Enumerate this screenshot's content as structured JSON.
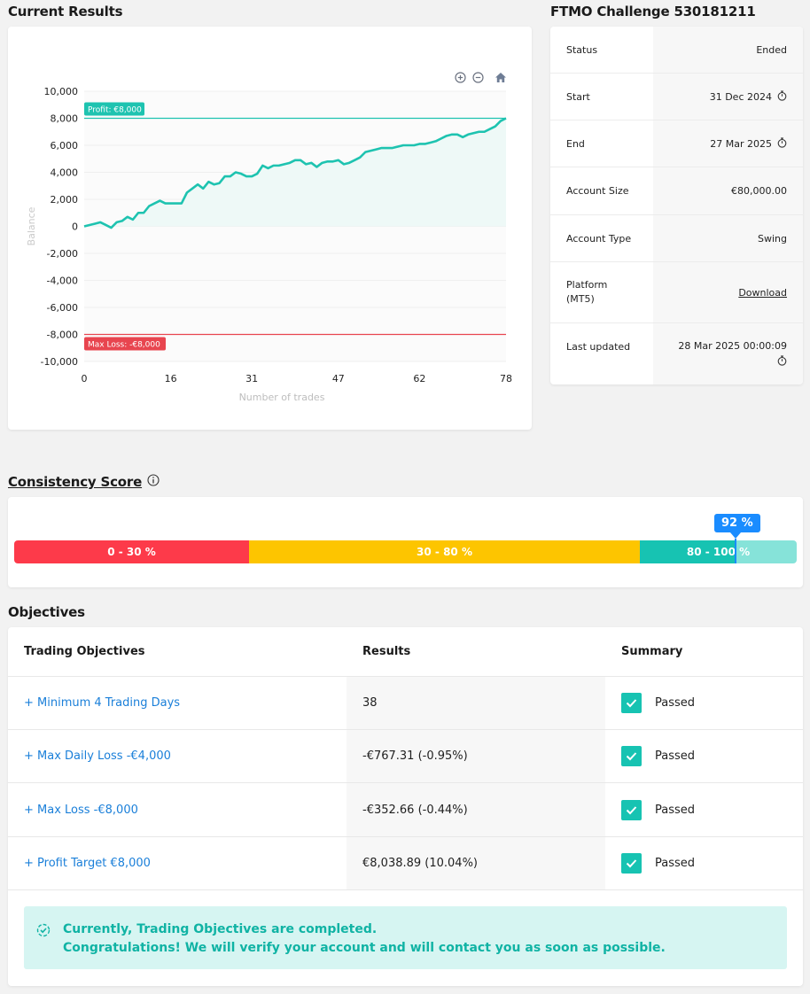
{
  "titles": {
    "current_results": "Current Results",
    "challenge": "FTMO Challenge 530181211",
    "consistency": "Consistency Score",
    "objectives": "Objectives"
  },
  "chart_data": {
    "type": "line",
    "xlabel": "Number of trades",
    "ylabel": "Balance",
    "x_ticks": [
      "0",
      "16",
      "31",
      "47",
      "62",
      "78"
    ],
    "y_ticks": [
      "10,000",
      "8,000",
      "6,000",
      "4,000",
      "2,000",
      "0",
      "-2,000",
      "-4,000",
      "-6,000",
      "-8,000",
      "-10,000"
    ],
    "xlim": [
      0,
      78
    ],
    "ylim": [
      -10000,
      10000
    ],
    "series": [
      {
        "x": [
          0,
          2,
          3,
          4,
          5,
          6,
          7,
          8,
          9,
          10,
          11,
          12,
          13,
          14,
          15,
          16,
          17,
          18,
          19,
          20,
          21,
          22,
          23,
          24,
          25,
          26,
          27,
          28,
          29,
          30,
          31,
          32,
          33,
          34,
          35,
          36,
          37,
          38,
          39,
          40,
          41,
          42,
          43,
          44,
          45,
          46,
          47,
          48,
          49,
          50,
          51,
          52,
          53,
          54,
          55,
          56,
          57,
          58,
          59,
          60,
          61,
          62,
          63,
          64,
          65,
          66,
          67,
          68,
          69,
          70,
          71,
          72,
          73,
          74,
          75,
          76,
          77,
          78
        ],
        "values": [
          0,
          200,
          300,
          100,
          -100,
          300,
          400,
          700,
          500,
          1000,
          1000,
          1500,
          1700,
          1900,
          1700,
          1700,
          1700,
          1700,
          2500,
          2800,
          3100,
          2800,
          3300,
          3100,
          3200,
          3700,
          3700,
          4000,
          3900,
          3700,
          3700,
          3900,
          4500,
          4300,
          4500,
          4500,
          4600,
          4700,
          4900,
          4900,
          4600,
          4700,
          4400,
          4700,
          4800,
          4800,
          4900,
          4600,
          4700,
          4900,
          5100,
          5500,
          5600,
          5700,
          5800,
          5800,
          5800,
          5900,
          6000,
          6000,
          6000,
          6100,
          6100,
          6200,
          6300,
          6500,
          6700,
          6800,
          6800,
          6600,
          6800,
          6900,
          7000,
          7000,
          7200,
          7400,
          7800,
          8000
        ]
      }
    ],
    "profit_line": {
      "value": 8000,
      "label": "Profit: €8,000"
    },
    "loss_line": {
      "value": -8000,
      "label": "Max Loss: -€8,000"
    },
    "colors": {
      "line": "#1ec3b0",
      "fill": "#eef9f7",
      "profit": "#1ec3b0",
      "loss": "#e8454f"
    }
  },
  "info": [
    {
      "label": "Status",
      "value": "Ended"
    },
    {
      "label": "Start",
      "value": "31 Dec 2024",
      "icon": "stopwatch-icon"
    },
    {
      "label": "End",
      "value": "27 Mar 2025",
      "icon": "stopwatch-icon"
    },
    {
      "label": "Account Size",
      "value": "€80,000.00"
    },
    {
      "label": "Account Type",
      "value": "Swing"
    },
    {
      "label": "Platform\n(MT5)",
      "value": "Download",
      "link": true
    },
    {
      "label": "Last updated",
      "value": "28 Mar 2025 00:00:09",
      "icon": "stopwatch-icon",
      "stack": true
    }
  ],
  "consistency": {
    "segments": [
      {
        "label": "0 - 30 %",
        "color": "#fd3a4a"
      },
      {
        "label": "30 - 80 %",
        "color": "#fdc500"
      },
      {
        "label": "80 - 100 %",
        "color": "#17c3b2"
      }
    ],
    "score_label": "92 %",
    "score": 92
  },
  "objectives": {
    "headers": [
      "Trading Objectives",
      "Results",
      "Summary"
    ],
    "rows": [
      {
        "name": "+ Minimum 4 Trading Days",
        "result": "38",
        "status": "Passed"
      },
      {
        "name": "+ Max Daily Loss -€4,000",
        "result": "-€767.31 (-0.95%)",
        "status": "Passed"
      },
      {
        "name": "+ Max Loss -€8,000",
        "result": "-€352.66 (-0.44%)",
        "status": "Passed"
      },
      {
        "name": "+ Profit Target €8,000",
        "result": "€8,038.89 (10.04%)",
        "status": "Passed"
      }
    ],
    "notice_line1": "Currently, Trading Objectives are completed.",
    "notice_line2": "Congratulations! We will verify your account and will contact you as soon as possible."
  }
}
